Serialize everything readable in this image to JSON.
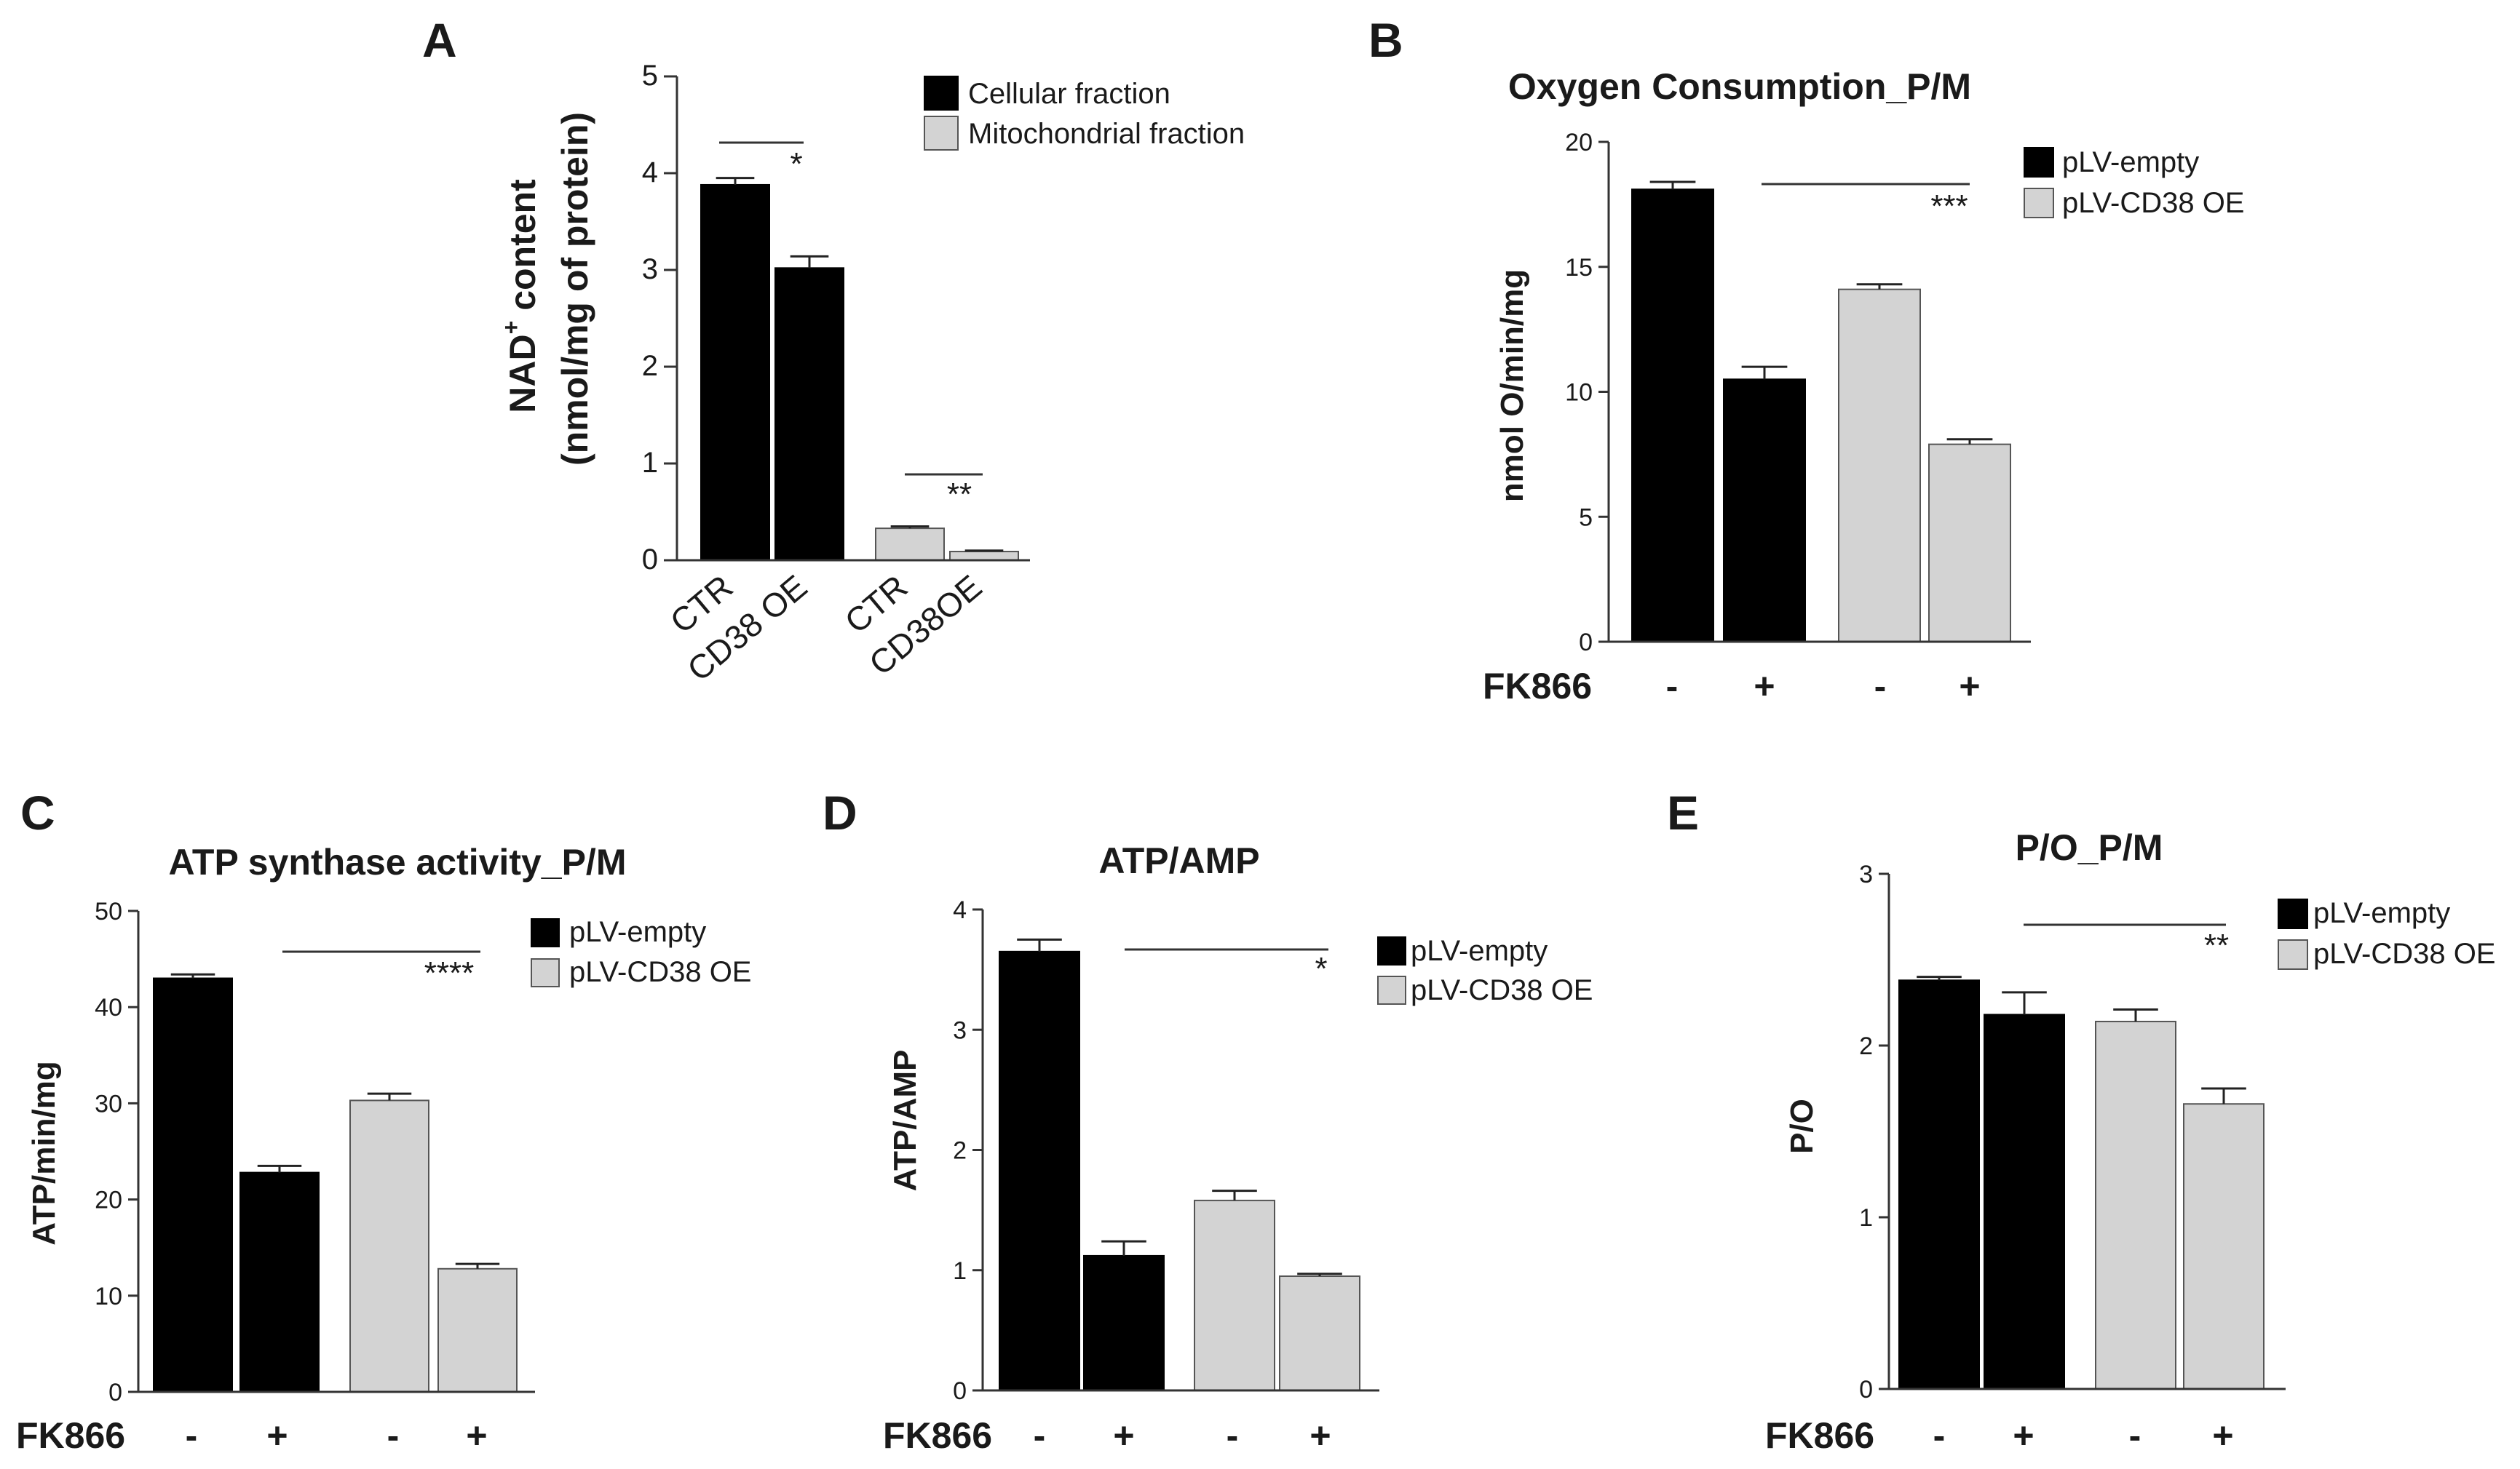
{
  "colors": {
    "black_bar": "#000000",
    "gray_bar": "#d3d3d3",
    "gray_edge": "#555555"
  },
  "chart_data": [
    {
      "id": "A",
      "type": "bar",
      "panel_label": "A",
      "title": "",
      "ylabel_main": "NAD",
      "ylabel_sup": "+",
      "ylabel_rest": " content",
      "ylabel_line2": "(nmol/mg of protein)",
      "ylim": [
        0,
        5
      ],
      "yticks": [
        "0",
        "1",
        "2",
        "3",
        "4",
        "5"
      ],
      "categories": [
        "CTR",
        "CD38 OE",
        "CTR",
        "CD38OE"
      ],
      "bars": [
        {
          "label": "CTR",
          "series": "Cellular fraction",
          "value": 3.88,
          "err": 0.07
        },
        {
          "label": "CD38 OE",
          "series": "Cellular fraction",
          "value": 3.02,
          "err": 0.12
        },
        {
          "label": "CTR",
          "series": "Mitochondrial fraction",
          "value": 0.33,
          "err": 0.02
        },
        {
          "label": "CD38OE",
          "series": "Mitochondrial fraction",
          "value": 0.09,
          "err": 0.01
        }
      ],
      "legend": [
        "Cellular fraction",
        "Mitochondrial fraction"
      ],
      "annotations": [
        "*",
        "**"
      ]
    },
    {
      "id": "B",
      "type": "bar",
      "panel_label": "B",
      "title": "Oxygen Consumption_P/M",
      "ylabel": "nmol O/min/mg",
      "ylim": [
        0,
        20
      ],
      "yticks": [
        "0",
        "5",
        "10",
        "15",
        "20"
      ],
      "fk_label": "FK866",
      "fk_signs": [
        "-",
        "+",
        "-",
        "+"
      ],
      "bars": [
        {
          "series": "pLV-empty",
          "fk866": "-",
          "value": 18.1,
          "err": 0.3
        },
        {
          "series": "pLV-empty",
          "fk866": "+",
          "value": 10.5,
          "err": 0.5
        },
        {
          "series": "pLV-CD38 OE",
          "fk866": "-",
          "value": 14.1,
          "err": 0.2
        },
        {
          "series": "pLV-CD38 OE",
          "fk866": "+",
          "value": 7.9,
          "err": 0.2
        }
      ],
      "legend": [
        "pLV-empty",
        "pLV-CD38 OE"
      ],
      "significance": "***"
    },
    {
      "id": "C",
      "type": "bar",
      "panel_label": "C",
      "title": "ATP synthase activity_P/M",
      "ylabel": "ATP/min/mg",
      "ylim": [
        0,
        50
      ],
      "yticks": [
        "0",
        "10",
        "20",
        "30",
        "40",
        "50"
      ],
      "fk_label": "FK866",
      "fk_signs": [
        "-",
        "+",
        "-",
        "+"
      ],
      "bars": [
        {
          "series": "pLV-empty",
          "fk866": "-",
          "value": 43.0,
          "err": 0.4
        },
        {
          "series": "pLV-empty",
          "fk866": "+",
          "value": 22.8,
          "err": 0.7
        },
        {
          "series": "pLV-CD38 OE",
          "fk866": "-",
          "value": 30.3,
          "err": 0.7
        },
        {
          "series": "pLV-CD38 OE",
          "fk866": "+",
          "value": 12.8,
          "err": 0.5
        }
      ],
      "legend": [
        "pLV-empty",
        "pLV-CD38 OE"
      ],
      "significance": "****"
    },
    {
      "id": "D",
      "type": "bar",
      "panel_label": "D",
      "title": "ATP/AMP",
      "ylabel": "ATP/AMP",
      "ylim": [
        0,
        4
      ],
      "yticks": [
        "0",
        "1",
        "2",
        "3",
        "4"
      ],
      "fk_label": "FK866",
      "fk_signs": [
        "-",
        "+",
        "-",
        "+"
      ],
      "bars": [
        {
          "series": "pLV-empty",
          "fk866": "-",
          "value": 3.65,
          "err": 0.1
        },
        {
          "series": "pLV-empty",
          "fk866": "+",
          "value": 1.12,
          "err": 0.12
        },
        {
          "series": "pLV-CD38 OE",
          "fk866": "-",
          "value": 1.58,
          "err": 0.08
        },
        {
          "series": "pLV-CD38 OE",
          "fk866": "+",
          "value": 0.95,
          "err": 0.02
        }
      ],
      "legend": [
        "pLV-empty",
        "pLV-CD38 OE"
      ],
      "significance": "*"
    },
    {
      "id": "E",
      "type": "bar",
      "panel_label": "E",
      "title": "P/O_P/M",
      "ylabel": "P/O",
      "ylim": [
        0,
        3
      ],
      "yticks": [
        "0",
        "1",
        "2",
        "3"
      ],
      "fk_label": "FK866",
      "fk_signs": [
        "-",
        "+",
        "-",
        "+"
      ],
      "bars": [
        {
          "series": "pLV-empty",
          "fk866": "-",
          "value": 2.38,
          "err": 0.02
        },
        {
          "series": "pLV-empty",
          "fk866": "+",
          "value": 2.18,
          "err": 0.13
        },
        {
          "series": "pLV-CD38 OE",
          "fk866": "-",
          "value": 2.14,
          "err": 0.07
        },
        {
          "series": "pLV-CD38 OE",
          "fk866": "+",
          "value": 1.66,
          "err": 0.09
        }
      ],
      "legend": [
        "pLV-empty",
        "pLV-CD38 OE"
      ],
      "significance": "**"
    }
  ]
}
